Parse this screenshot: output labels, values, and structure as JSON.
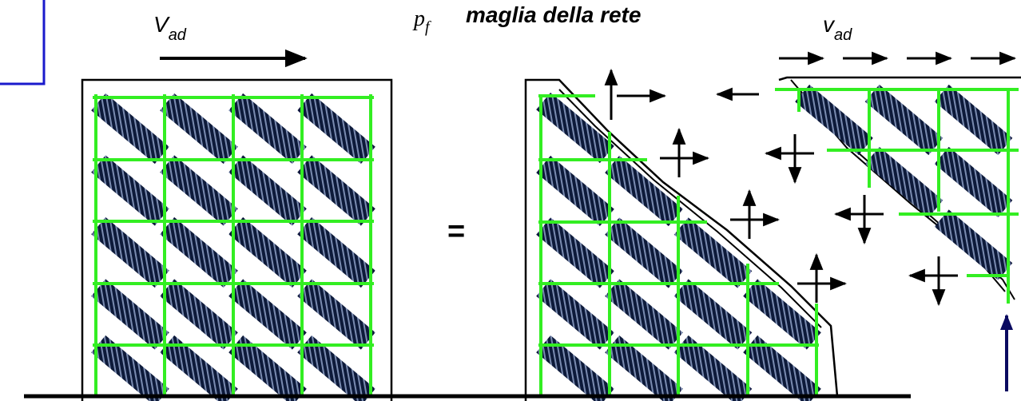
{
  "labels": {
    "left_shear": {
      "main": "V",
      "sub": "ad"
    },
    "mesh": {
      "symbol_main": "p",
      "symbol_sub": "f",
      "text": "maglia della rete"
    },
    "right_shear": {
      "main": "v",
      "sub": "ad"
    },
    "equals": "="
  }
}
